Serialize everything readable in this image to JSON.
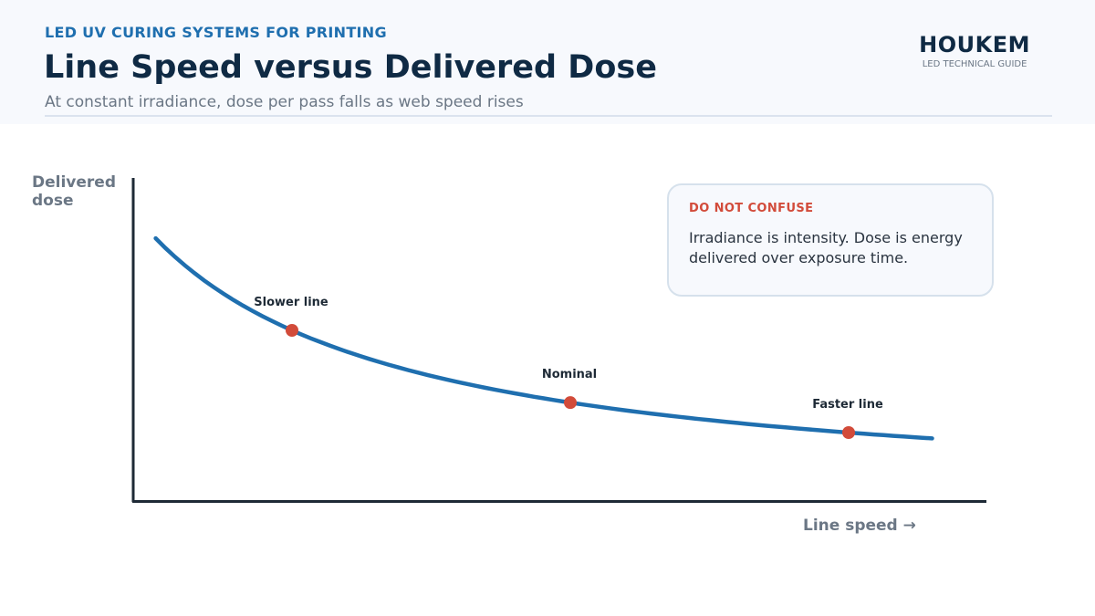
{
  "header": {
    "eyebrow": "LED UV CURING SYSTEMS FOR PRINTING",
    "title": "Line Speed versus Delivered Dose",
    "subtitle": "At constant irradiance, dose per pass falls as web speed rises"
  },
  "brand": {
    "name": "HOUKEM",
    "tagline": "LED TECHNICAL GUIDE"
  },
  "chart_data": {
    "type": "line",
    "ylabel": "Delivered dose",
    "xlabel": "Line speed →",
    "curve": {
      "relationship": "dose proportional to 1 / line speed",
      "color": "#1f6faf"
    },
    "points": [
      {
        "label": "Slower line",
        "speed": 1.0
      },
      {
        "label": "Nominal",
        "speed": 2.0
      },
      {
        "label": "Faster line",
        "speed": 3.0
      }
    ],
    "point_color": "#d24b3a"
  },
  "callout": {
    "title": "DO NOT CONFUSE",
    "body": "Irradiance is intensity. Dose is energy delivered over exposure time."
  }
}
